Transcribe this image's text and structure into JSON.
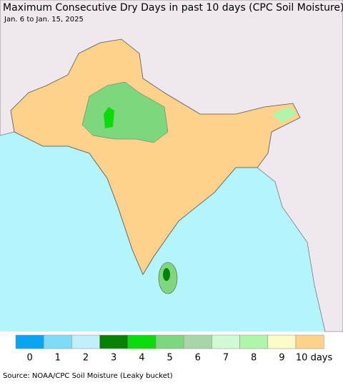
{
  "header": {
    "title": "Maximum Consecutive Dry Days in past 10 days (CPC Soil Moisture)",
    "subtitle": "Jan. 6 to Jan. 15, 2025"
  },
  "legend": {
    "items": [
      {
        "label": "0",
        "color": "#0aa5f0"
      },
      {
        "label": "1",
        "color": "#7ddcf8"
      },
      {
        "label": "2",
        "color": "#c0f0fc"
      },
      {
        "label": "3",
        "color": "#078207"
      },
      {
        "label": "4",
        "color": "#0adc0a"
      },
      {
        "label": "5",
        "color": "#7dd77d"
      },
      {
        "label": "6",
        "color": "#aad7aa"
      },
      {
        "label": "7",
        "color": "#d2fad2"
      },
      {
        "label": "8",
        "color": "#aff5aa"
      },
      {
        "label": "9",
        "color": "#fcfcc8"
      },
      {
        "label": "10 days",
        "color": "#fcd28c"
      }
    ]
  },
  "footer": {
    "source": "Source: NOAA/CPC Soil Moisture (Leaky bucket)"
  }
}
